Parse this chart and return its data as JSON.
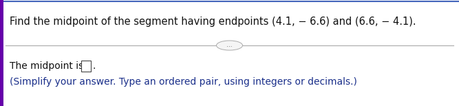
{
  "question_text": "Find the midpoint of the segment having endpoints (4.1, − 6.6) and (6.6, − 4.1).",
  "dots_label": "...",
  "answer_prefix": "The midpoint is ",
  "answer_hint": "(Simplify your answer. Type an ordered pair, using integers or decimals.)",
  "bg_color": "#ffffff",
  "left_border_color": "#6600aa",
  "divider_color": "#aaaaaa",
  "text_color_dark": "#111111",
  "text_color_blue": "#1a2f8a",
  "font_size_question": 10.5,
  "font_size_answer": 10,
  "font_size_hint": 10,
  "dots_fill": "#f5f5f5",
  "dots_border": "#aaaaaa",
  "box_fill": "#ffffff",
  "box_border": "#444444"
}
